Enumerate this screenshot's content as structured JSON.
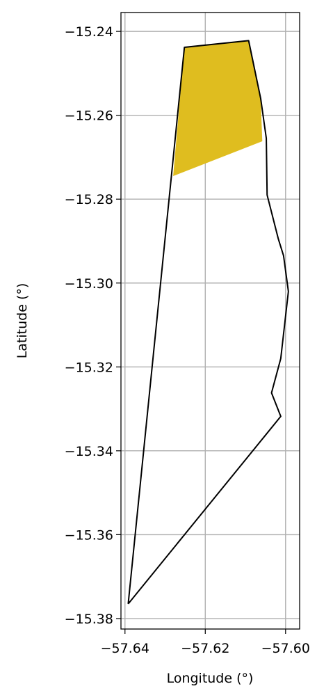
{
  "chart_data": {
    "type": "area",
    "xlabel": "Longitude (°)",
    "ylabel": "Latitude (°)",
    "xlim": [
      -57.641,
      -57.5965
    ],
    "ylim": [
      -15.3825,
      -15.2355
    ],
    "grid": true,
    "xticks": [
      -57.64,
      -57.62,
      -57.6
    ],
    "xtick_labels": [
      "−57.64",
      "−57.62",
      "−57.60"
    ],
    "yticks": [
      -15.24,
      -15.26,
      -15.28,
      -15.3,
      -15.32,
      -15.34,
      -15.36,
      -15.38
    ],
    "ytick_labels": [
      "−15.24",
      "−15.26",
      "−15.28",
      "−15.30",
      "−15.32",
      "−15.34",
      "−15.36",
      "−15.38"
    ],
    "boundary": {
      "color": "#000000",
      "fill": "none",
      "points": [
        [
          -57.6392,
          -15.3765
        ],
        [
          -57.6252,
          -15.2438
        ],
        [
          -57.6092,
          -15.2422
        ],
        [
          -57.6062,
          -15.256
        ],
        [
          -57.6048,
          -15.2655
        ],
        [
          -57.6046,
          -15.279
        ],
        [
          -57.6018,
          -15.2895
        ],
        [
          -57.6005,
          -15.2935
        ],
        [
          -57.5993,
          -15.302
        ],
        [
          -57.6012,
          -15.318
        ],
        [
          -57.6035,
          -15.3262
        ],
        [
          -57.6012,
          -15.3318
        ],
        [
          -57.6392,
          -15.3765
        ]
      ]
    },
    "region": {
      "color": "#dfbd1f",
      "points": [
        [
          -57.628,
          -15.2745
        ],
        [
          -57.6252,
          -15.2438
        ],
        [
          -57.6092,
          -15.2422
        ],
        [
          -57.6062,
          -15.256
        ],
        [
          -57.6058,
          -15.2662
        ],
        [
          -57.628,
          -15.2745
        ]
      ]
    }
  }
}
